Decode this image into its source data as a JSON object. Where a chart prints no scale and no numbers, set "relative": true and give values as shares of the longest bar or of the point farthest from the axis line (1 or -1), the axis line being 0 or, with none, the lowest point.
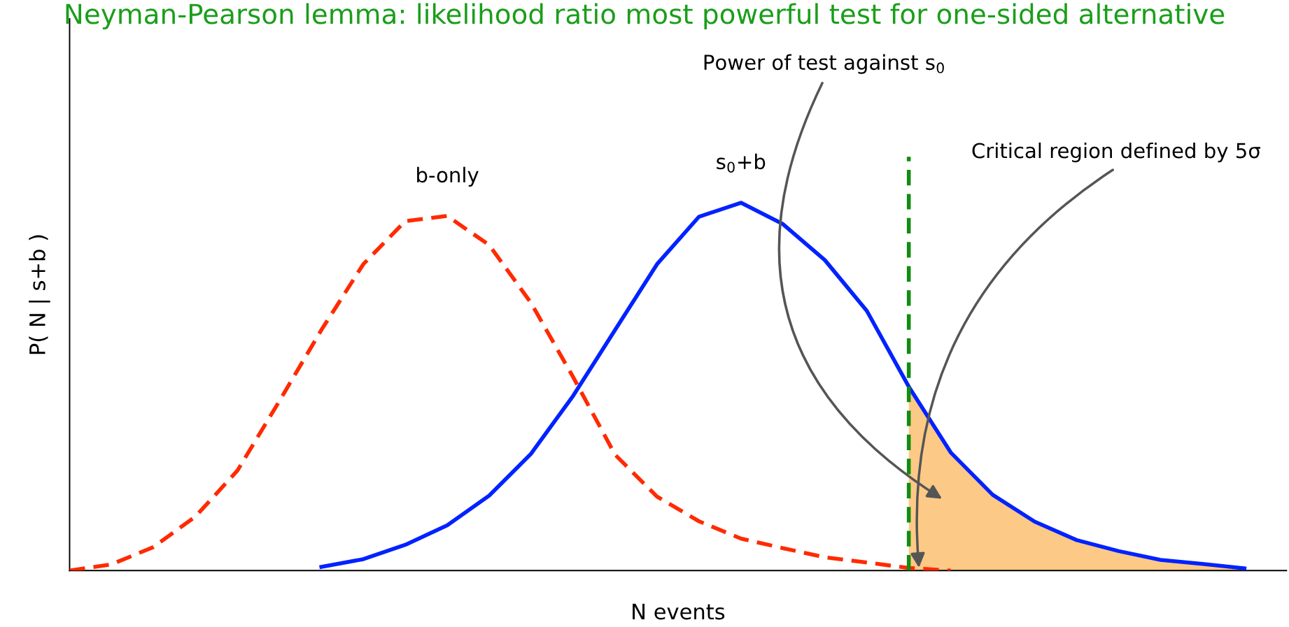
{
  "chart_data": {
    "type": "line",
    "relative": true,
    "title": "Neyman-Pearson lemma: likelihood ratio most powerful test for one-sided alternative",
    "xlabel": "N events",
    "ylabel": "P( N | s+b )",
    "categories": [
      null,
      null,
      null,
      null,
      null,
      null,
      null,
      null,
      null,
      null,
      null,
      null,
      null,
      null,
      null,
      null,
      null,
      null,
      null,
      null,
      null,
      null,
      null,
      null,
      null,
      null,
      null,
      null,
      null,
      null
    ],
    "series": [
      {
        "name": "b-only",
        "color": "#ff2a00",
        "line_style": "dashed",
        "values": [
          0,
          0.017,
          0.064,
          0.147,
          0.272,
          0.461,
          0.654,
          0.833,
          0.95,
          0.964,
          0.885,
          0.727,
          0.526,
          0.315,
          0.201,
          0.134,
          0.087,
          0.061,
          0.036,
          0.022,
          0.007,
          0,
          null,
          null,
          null,
          null,
          null,
          null,
          null,
          null
        ]
      },
      {
        "name": "s$_{0}$+b",
        "color": "#0022ff",
        "line_style": "solid",
        "values": [
          null,
          null,
          null,
          null,
          null,
          null,
          0.01,
          0.031,
          0.07,
          0.123,
          0.204,
          0.318,
          0.475,
          0.654,
          0.833,
          0.962,
          1,
          0.942,
          0.844,
          0.706,
          0.5,
          0.321,
          0.206,
          0.133,
          0.083,
          0.053,
          0.029,
          0.018,
          0.006,
          null
        ]
      },
      {
        "type": "area",
        "color": "#fdc986",
        "values": [
          null,
          null,
          null,
          null,
          null,
          null,
          null,
          null,
          null,
          null,
          null,
          null,
          null,
          null,
          null,
          null,
          null,
          null,
          null,
          null,
          0.5,
          0.321,
          0.206,
          0.133,
          0.083,
          0.053,
          0.029,
          0.018,
          0.006,
          null
        ]
      }
    ],
    "annotations": [
      "Power of test against s$_{0}$",
      "Critical region defined by 5σ"
    ],
    "grid": false
  }
}
